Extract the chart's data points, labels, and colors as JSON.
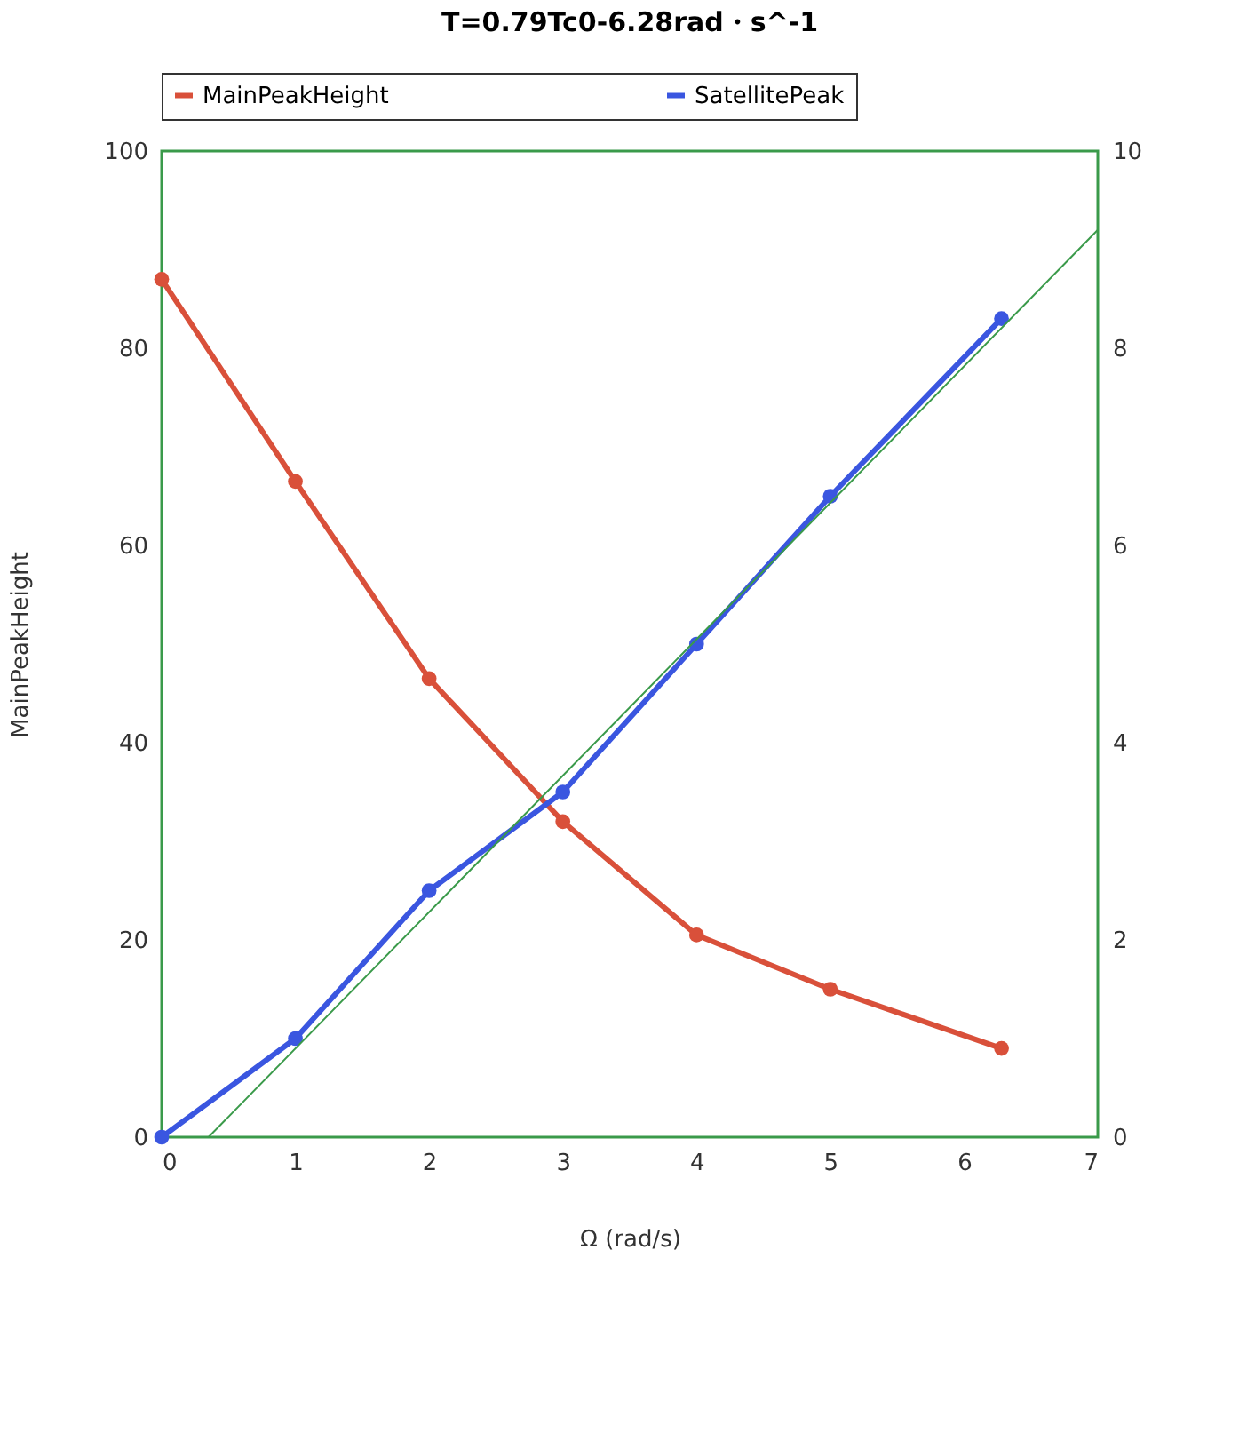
{
  "chart_data": {
    "type": "line",
    "title": "T=0.79Tc0-6.28rad・s^-1",
    "xlabel": "Ω (rad/s)",
    "ylabel": "MainPeakHeight",
    "x": [
      0,
      1,
      2,
      3,
      4,
      5,
      6.28
    ],
    "series": [
      {
        "name": "MainPeakHeight",
        "color": "#d9503a",
        "values": [
          87,
          66.5,
          46.5,
          32,
          20.5,
          15,
          9
        ]
      },
      {
        "name": "SatellitePeak",
        "color": "#3a56e0",
        "axis": "y2",
        "values": [
          0,
          1,
          2.5,
          3.5,
          5,
          6.5,
          8.3
        ]
      },
      {
        "type": "line",
        "color": "#3a9a4a",
        "axis": "y2",
        "marker": "none",
        "x": [
          0.35,
          7
        ],
        "values": [
          0,
          9.2
        ]
      }
    ],
    "xlim": [
      0,
      7
    ],
    "xticks": [
      0,
      1,
      2,
      3,
      4,
      5,
      6,
      7
    ],
    "ylim": [
      0,
      100
    ],
    "yticks": [
      0,
      20,
      40,
      60,
      80,
      100
    ],
    "y2lim": [
      0,
      10
    ],
    "y2ticks": [
      0,
      2,
      4,
      6,
      8,
      10
    ],
    "grid": false,
    "legend": "top",
    "marker": "circle",
    "line_style": "solid"
  }
}
